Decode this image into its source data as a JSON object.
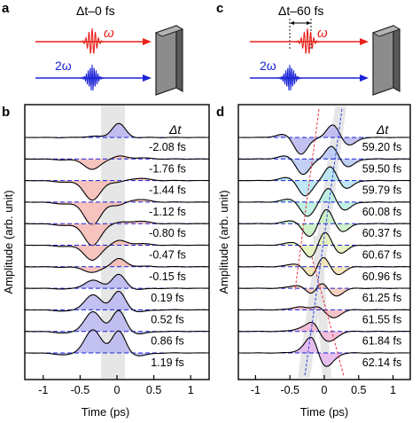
{
  "panel_labels": {
    "a": "a",
    "b": "b",
    "c": "c",
    "d": "d"
  },
  "panel_a": {
    "title": "Δt–0 fs",
    "omega_label": "ω",
    "two_omega_label": "2ω"
  },
  "panel_c": {
    "title": "Δt–60 fs",
    "omega_label": "ω",
    "two_omega_label": "2ω"
  },
  "colors": {
    "red": "#e8221b",
    "blue": "#1a22d6",
    "pink_fill": "#f4b8b4",
    "lavender_fill": "#b9b6ef",
    "gray_band": "#e6e6e6",
    "block_front": "#8c8c8c",
    "block_side": "#5a5a5a",
    "block_top": "#b4b4b4"
  },
  "chart_data": [
    {
      "type": "line",
      "panel": "b",
      "ylabel": "Amplitude (arb. unit)",
      "xlabel": "Time (ps)",
      "xlim": [
        -1.25,
        1.25
      ],
      "xticks": [
        "-1",
        "-0.5",
        "0",
        "0.5",
        "1"
      ],
      "xtick_values": [
        -1,
        -0.5,
        0,
        0.5,
        1
      ],
      "legend_title": "Δt",
      "series": [
        {
          "label": "-2.08 fs",
          "fill": "lavender",
          "a": -0.05,
          "b": 0.6
        },
        {
          "label": "-1.76 fs",
          "fill": "pink",
          "a": 0.45,
          "b": 0.12
        },
        {
          "label": "-1.44 fs",
          "fill": "pink",
          "a": 0.85,
          "b": -0.08
        },
        {
          "label": "-1.12 fs",
          "fill": "pink",
          "a": 1.0,
          "b": -0.15
        },
        {
          "label": "-0.80 fs",
          "fill": "pink",
          "a": 0.95,
          "b": 0.05
        },
        {
          "label": "-0.47 fs",
          "fill": "pink",
          "a": 0.65,
          "b": 0.2
        },
        {
          "label": "-0.15 fs",
          "fill": "pink",
          "a": 0.25,
          "b": 0.35
        },
        {
          "label": "0.19 fs",
          "fill": "lavender",
          "a": -0.35,
          "b": 0.6
        },
        {
          "label": "0.52 fs",
          "fill": "lavender",
          "a": -0.65,
          "b": 0.8
        },
        {
          "label": "0.86 fs",
          "fill": "lavender",
          "a": -0.85,
          "b": 0.9
        },
        {
          "label": "1.19 fs",
          "fill": "lavender",
          "a": -1.0,
          "b": 0.95
        }
      ]
    },
    {
      "type": "line",
      "panel": "d",
      "ylabel": "Amplitude (arb. unit)",
      "xlabel": "Time (ps)",
      "xlim": [
        -1.25,
        1.25
      ],
      "xticks": [
        "-1",
        "-0.5",
        "0",
        "0.5",
        "1"
      ],
      "xtick_values": [
        -1,
        -0.5,
        0,
        0.5,
        1
      ],
      "legend_title": "Δt",
      "series": [
        {
          "label": "59.20 fs",
          "fill": "#b9b6ef",
          "t1": -0.22,
          "t2": 0.08,
          "a": -0.75,
          "b": 0.55
        },
        {
          "label": "59.50 fs",
          "fill": "#b6c8f2",
          "t1": -0.19,
          "t2": 0.06,
          "a": -0.7,
          "b": 0.55
        },
        {
          "label": "59.79 fs",
          "fill": "#b4e4f2",
          "t1": -0.16,
          "t2": 0.04,
          "a": -0.7,
          "b": 0.6
        },
        {
          "label": "60.08 fs",
          "fill": "#b9efe0",
          "t1": -0.13,
          "t2": 0.01,
          "a": -0.65,
          "b": 0.6
        },
        {
          "label": "60.37 fs",
          "fill": "#c8f0c2",
          "t1": -0.1,
          "t2": -0.02,
          "a": -0.6,
          "b": 0.65
        },
        {
          "label": "60.67 fs",
          "fill": "#e3f0b6",
          "t1": -0.08,
          "t2": -0.05,
          "a": -0.6,
          "b": 0.65
        },
        {
          "label": "60.96 fs",
          "fill": "#f2e3b0",
          "t1": -0.05,
          "t2": -0.09,
          "a": -0.6,
          "b": 0.65
        },
        {
          "label": "61.25 fs",
          "fill": "#f5c8b4",
          "t1": -0.02,
          "t2": -0.12,
          "a": -0.6,
          "b": 0.65
        },
        {
          "label": "61.55 fs",
          "fill": "#f4b8c0",
          "t1": 0.01,
          "t2": -0.15,
          "a": -0.55,
          "b": 0.7
        },
        {
          "label": "61.84 fs",
          "fill": "#f1b6d6",
          "t1": 0.04,
          "t2": -0.18,
          "a": -0.55,
          "b": 0.75
        },
        {
          "label": "62.14 fs",
          "fill": "#e4b6ef",
          "t1": 0.07,
          "t2": -0.21,
          "a": -0.5,
          "b": 0.8
        }
      ]
    }
  ]
}
